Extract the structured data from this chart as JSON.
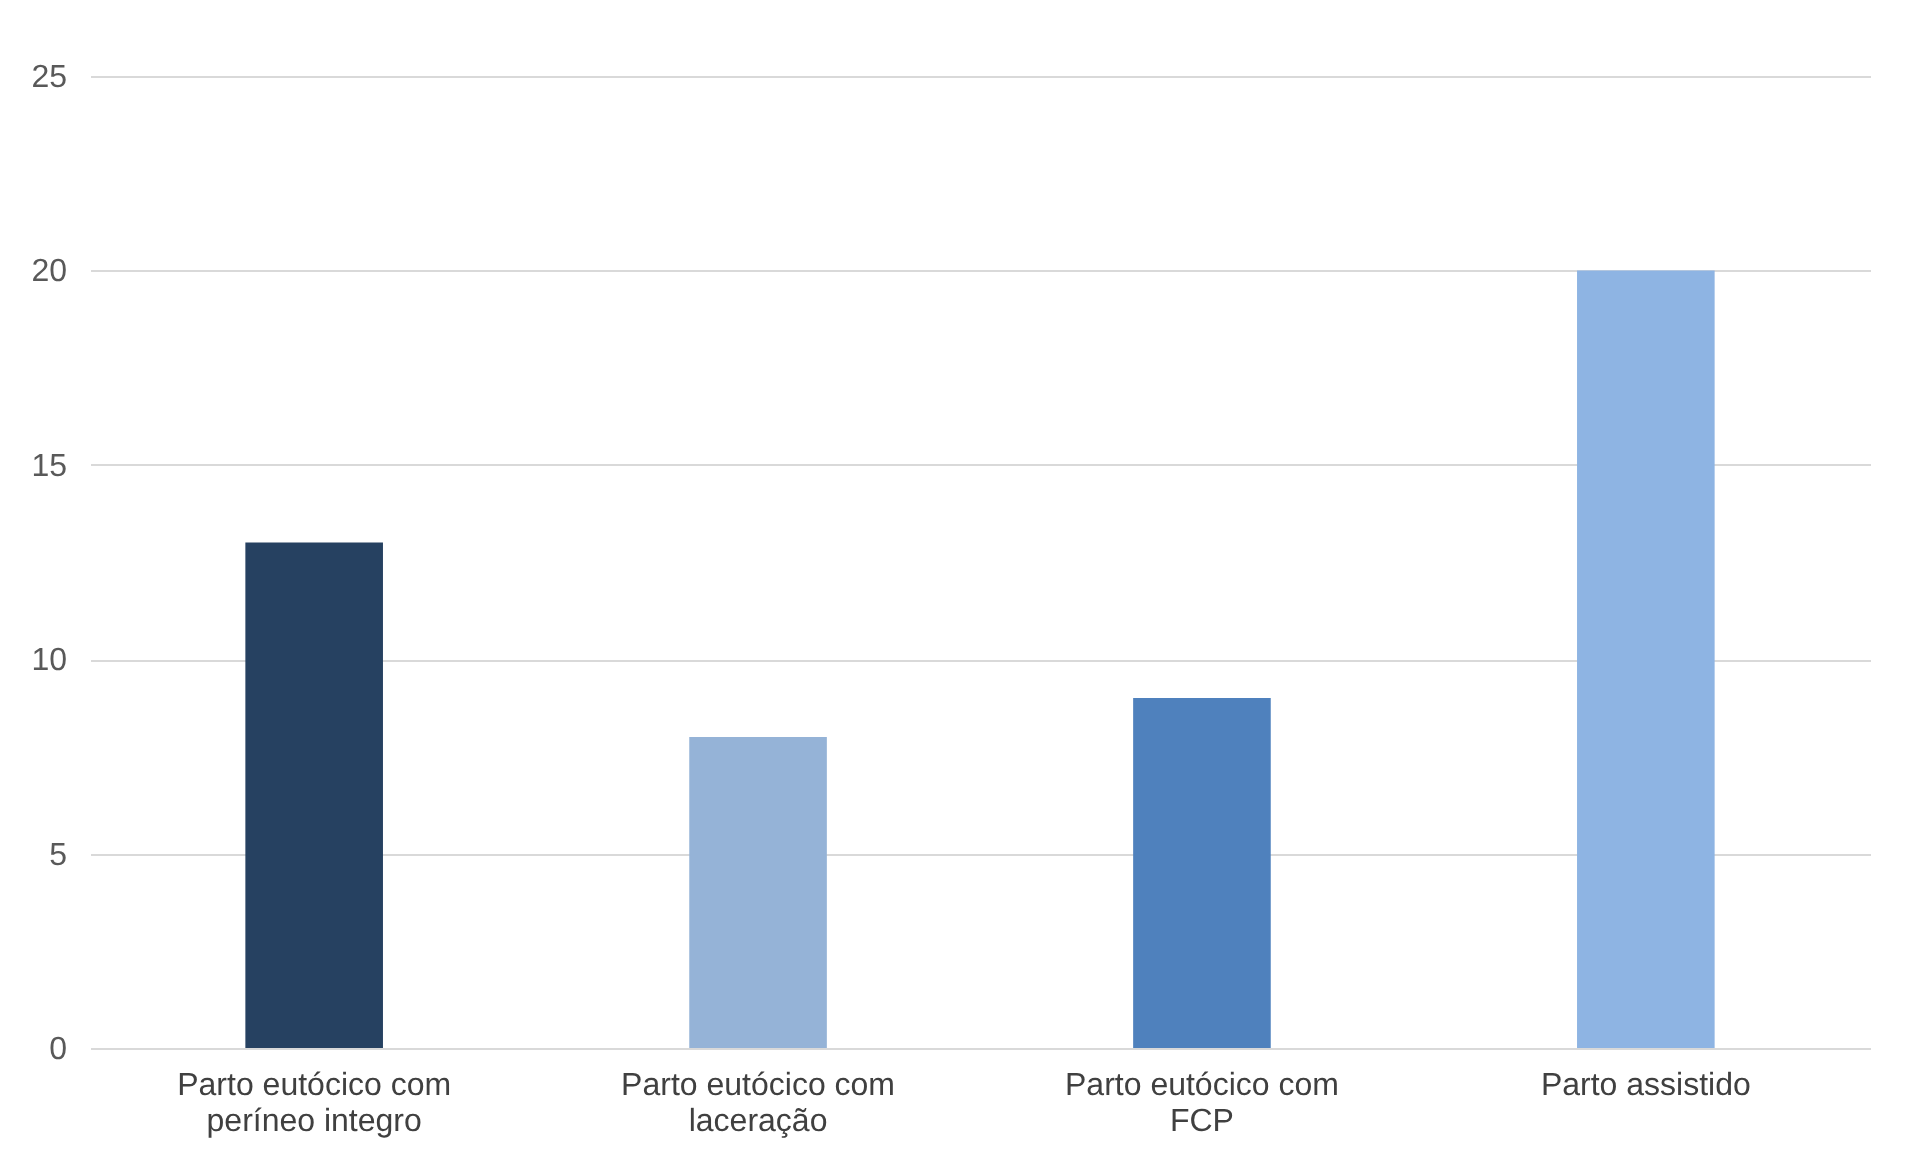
{
  "chart_data": {
    "type": "bar",
    "categories": [
      "Parto eutócico com períneo integro",
      "Parto eutócico com laceração",
      "Parto eutócico com FCP",
      "Parto assistido"
    ],
    "values": [
      13,
      8,
      9,
      20
    ],
    "colors": [
      "#264161",
      "#95b3d7",
      "#4f81bd",
      "#8eb4e3"
    ],
    "ylim": [
      0,
      25
    ],
    "yticks": [
      0,
      5,
      10,
      15,
      20,
      25
    ],
    "grid": "y"
  }
}
